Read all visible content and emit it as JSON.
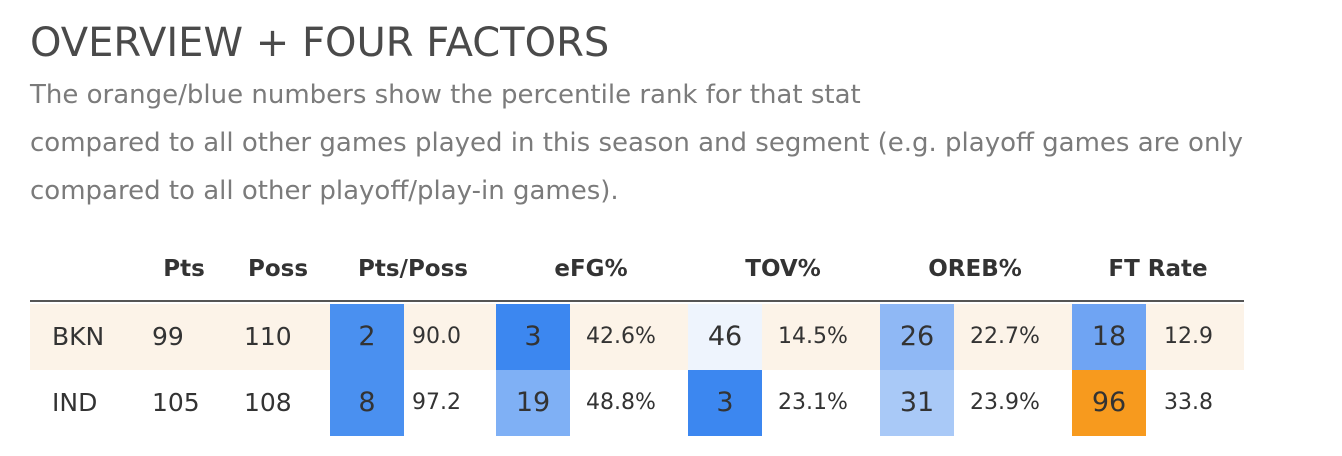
{
  "header": {
    "title": "OVERVIEW + FOUR FACTORS",
    "subtitle_lines": [
      "The orange/blue numbers show the percentile rank for that stat",
      "compared to all other games played in this season and segment (e.g. playoff games are only",
      "compared to all other playoff/play-in games)."
    ]
  },
  "table": {
    "columns": [
      "Pts",
      "Poss",
      "Pts/Poss",
      "eFG%",
      "TOV%",
      "OREB%",
      "FT Rate"
    ],
    "rows": [
      {
        "team": "BKN",
        "pts": "99",
        "poss": "110",
        "pts_poss": {
          "pct": "2",
          "value": "90.0",
          "color": "#4a90f0"
        },
        "efg": {
          "pct": "3",
          "value": "42.6%",
          "color": "#3c87f0"
        },
        "tov": {
          "pct": "46",
          "value": "14.5%",
          "color": "#eef4fd"
        },
        "oreb": {
          "pct": "26",
          "value": "22.7%",
          "color": "#8fb8f5"
        },
        "ft": {
          "pct": "18",
          "value": "12.9",
          "color": "#6fa4f3"
        }
      },
      {
        "team": "IND",
        "pts": "105",
        "poss": "108",
        "pts_poss": {
          "pct": "8",
          "value": "97.2",
          "color": "#4a90f0"
        },
        "efg": {
          "pct": "19",
          "value": "48.8%",
          "color": "#7fb0f5"
        },
        "tov": {
          "pct": "3",
          "value": "23.1%",
          "color": "#3c87f0"
        },
        "oreb": {
          "pct": "31",
          "value": "23.9%",
          "color": "#a9c9f7"
        },
        "ft": {
          "pct": "96",
          "value": "33.8",
          "color": "#f79a1e"
        }
      }
    ]
  }
}
